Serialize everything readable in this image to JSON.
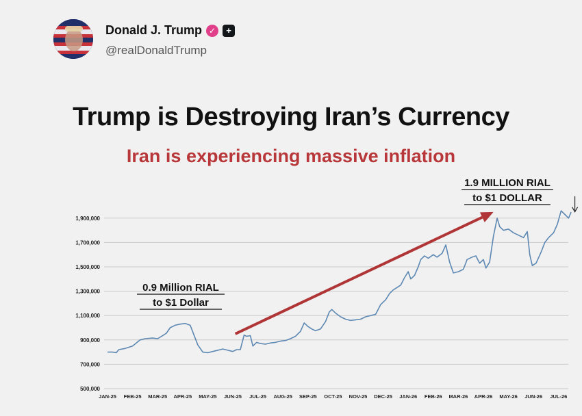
{
  "post": {
    "display_name": "Donald J. Trump",
    "handle": "@realDonaldTrump",
    "verified_icon": "verified-check-icon",
    "badge_icon": "government-badge-icon"
  },
  "colors": {
    "title": "#111111",
    "subtitle": "#b8373a",
    "line": "#5c88b3",
    "arrow": "#b03536",
    "grid": "#c9c9c9"
  },
  "chart_data": {
    "type": "line",
    "title": "Trump is Destroying Iran’s Currency",
    "subtitle": "Iran is experiencing massive inflation",
    "xlabel": "",
    "ylabel": "",
    "categories": [
      "JAN-25",
      "FEB-25",
      "MAR-25",
      "APR-25",
      "MAY-25",
      "JUN-25",
      "JUL-25",
      "AUG-25",
      "SEP-25",
      "OCT-25",
      "NOV-25",
      "DEC-25",
      "JAN-26",
      "FEB-26",
      "MAR-26",
      "APR-26",
      "MAY-26",
      "JUN-26",
      "JUL-26"
    ],
    "y_ticks": [
      500000,
      700000,
      900000,
      1100000,
      1300000,
      1500000,
      1700000,
      1900000
    ],
    "y_tick_labels": [
      "500,000",
      "700,000",
      "900,000",
      "1,100,000",
      "1,300,000",
      "1,500,000",
      "1,700,000",
      "1,900,000"
    ],
    "ylim": [
      500000,
      2000000
    ],
    "grid": true,
    "series": [
      {
        "values": [
          [
            0,
            800000
          ],
          [
            0.2,
            800000
          ],
          [
            0.35,
            795000
          ],
          [
            0.45,
            820000
          ],
          [
            0.7,
            830000
          ],
          [
            1.0,
            850000
          ],
          [
            1.3,
            900000
          ],
          [
            1.5,
            910000
          ],
          [
            1.8,
            915000
          ],
          [
            2.0,
            910000
          ],
          [
            2.2,
            935000
          ],
          [
            2.35,
            955000
          ],
          [
            2.5,
            1000000
          ],
          [
            2.7,
            1020000
          ],
          [
            2.9,
            1030000
          ],
          [
            3.1,
            1035000
          ],
          [
            3.3,
            1020000
          ],
          [
            3.45,
            940000
          ],
          [
            3.6,
            860000
          ],
          [
            3.8,
            800000
          ],
          [
            4.0,
            795000
          ],
          [
            4.3,
            810000
          ],
          [
            4.6,
            825000
          ],
          [
            4.8,
            815000
          ],
          [
            5.0,
            805000
          ],
          [
            5.15,
            820000
          ],
          [
            5.3,
            820000
          ],
          [
            5.45,
            940000
          ],
          [
            5.55,
            930000
          ],
          [
            5.7,
            935000
          ],
          [
            5.8,
            850000
          ],
          [
            5.95,
            880000
          ],
          [
            6.1,
            870000
          ],
          [
            6.3,
            865000
          ],
          [
            6.5,
            875000
          ],
          [
            6.7,
            880000
          ],
          [
            6.9,
            890000
          ],
          [
            7.1,
            895000
          ],
          [
            7.3,
            910000
          ],
          [
            7.5,
            930000
          ],
          [
            7.7,
            970000
          ],
          [
            7.85,
            1040000
          ],
          [
            8.0,
            1010000
          ],
          [
            8.15,
            990000
          ],
          [
            8.3,
            975000
          ],
          [
            8.5,
            990000
          ],
          [
            8.7,
            1050000
          ],
          [
            8.85,
            1130000
          ],
          [
            8.95,
            1150000
          ],
          [
            9.1,
            1120000
          ],
          [
            9.3,
            1090000
          ],
          [
            9.5,
            1070000
          ],
          [
            9.7,
            1060000
          ],
          [
            9.9,
            1065000
          ],
          [
            10.1,
            1070000
          ],
          [
            10.3,
            1090000
          ],
          [
            10.5,
            1100000
          ],
          [
            10.7,
            1110000
          ],
          [
            10.9,
            1190000
          ],
          [
            11.1,
            1230000
          ],
          [
            11.25,
            1280000
          ],
          [
            11.4,
            1310000
          ],
          [
            11.55,
            1330000
          ],
          [
            11.7,
            1350000
          ],
          [
            11.85,
            1410000
          ],
          [
            12.0,
            1460000
          ],
          [
            12.1,
            1400000
          ],
          [
            12.25,
            1430000
          ],
          [
            12.4,
            1500000
          ],
          [
            12.5,
            1560000
          ],
          [
            12.65,
            1590000
          ],
          [
            12.8,
            1570000
          ],
          [
            13.0,
            1600000
          ],
          [
            13.15,
            1580000
          ],
          [
            13.35,
            1610000
          ],
          [
            13.5,
            1680000
          ],
          [
            13.65,
            1540000
          ],
          [
            13.8,
            1450000
          ],
          [
            14.0,
            1460000
          ],
          [
            14.2,
            1480000
          ],
          [
            14.35,
            1560000
          ],
          [
            14.55,
            1580000
          ],
          [
            14.7,
            1590000
          ],
          [
            14.85,
            1530000
          ],
          [
            15.0,
            1560000
          ],
          [
            15.1,
            1490000
          ],
          [
            15.25,
            1540000
          ],
          [
            15.4,
            1750000
          ],
          [
            15.55,
            1900000
          ],
          [
            15.65,
            1830000
          ],
          [
            15.8,
            1800000
          ],
          [
            16.0,
            1810000
          ],
          [
            16.2,
            1780000
          ],
          [
            16.4,
            1760000
          ],
          [
            16.6,
            1740000
          ],
          [
            16.75,
            1790000
          ],
          [
            16.85,
            1600000
          ],
          [
            16.95,
            1510000
          ],
          [
            17.1,
            1530000
          ],
          [
            17.3,
            1620000
          ],
          [
            17.45,
            1700000
          ],
          [
            17.6,
            1740000
          ],
          [
            17.8,
            1780000
          ],
          [
            17.95,
            1850000
          ],
          [
            18.1,
            1960000
          ],
          [
            18.25,
            1930000
          ],
          [
            18.4,
            1900000
          ],
          [
            18.5,
            1950000
          ]
        ]
      }
    ],
    "annotations": [
      {
        "line1": "0.9 Million RIAL",
        "line2": "to $1 Dollar",
        "underline_part": "$1"
      },
      {
        "line1": "1.9 MILLION RIAL",
        "line2": "to $1 DOLLAR",
        "underline_part": "$1"
      }
    ],
    "trend_arrow": {
      "from": [
        5.1,
        950000
      ],
      "to": [
        15.4,
        1950000
      ]
    },
    "pointer_arrow": {
      "from": [
        18.65,
        2080000
      ],
      "to": [
        18.65,
        1940000
      ]
    }
  }
}
